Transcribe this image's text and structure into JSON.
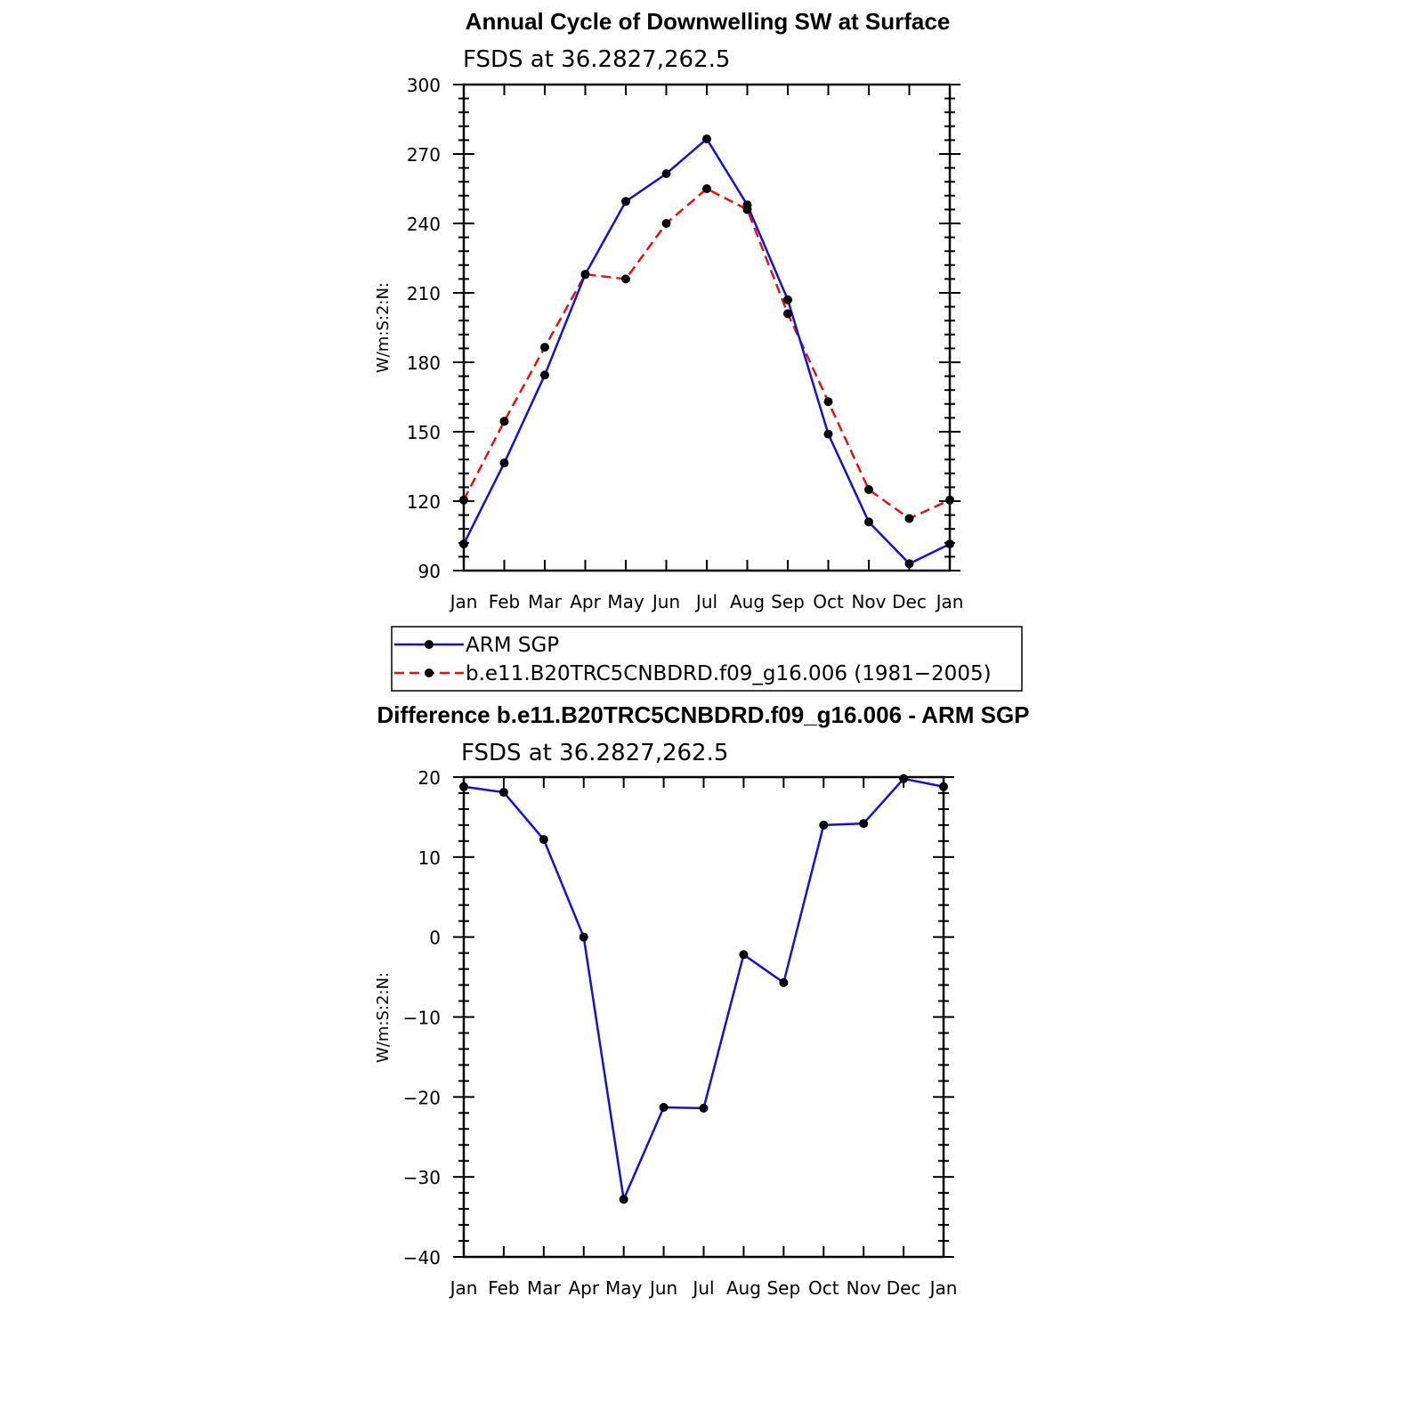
{
  "colors": {
    "obs": "#1010e0",
    "model": "#e81010",
    "diff": "#1010e0",
    "marker": "#000000"
  },
  "chart_data": [
    {
      "type": "line",
      "title": "Annual Cycle of Downwelling SW at Surface",
      "subtitle": "FSDS at 36.2827,262.5",
      "ylabel": "W/m:S:2:N:",
      "xlabel": "",
      "categories": [
        "Jan",
        "Feb",
        "Mar",
        "Apr",
        "May",
        "Jun",
        "Jul",
        "Aug",
        "Sep",
        "Oct",
        "Nov",
        "Dec",
        "Jan"
      ],
      "ylim": [
        90,
        300
      ],
      "yticks": [
        90,
        120,
        150,
        180,
        210,
        240,
        270,
        300
      ],
      "grid": false,
      "legend_position": "below",
      "series": [
        {
          "name": "ARM SGP",
          "style": "solid",
          "values": [
            101.5,
            136.5,
            174.5,
            218,
            249.5,
            261.5,
            276.5,
            248,
            207,
            149,
            111,
            93,
            101.5
          ]
        },
        {
          "name": "b.e11.B20TRC5CNBDRD.f09_g16.006 (1981−2005)",
          "style": "dashed",
          "values": [
            120.5,
            154.5,
            186.5,
            218,
            216,
            240,
            255,
            246,
            201,
            163,
            125,
            112.5,
            120.5
          ]
        }
      ]
    },
    {
      "type": "line",
      "title": "Difference b.e11.B20TRC5CNBDRD.f09_g16.006 - ARM SGP",
      "subtitle": "FSDS at 36.2827,262.5",
      "ylabel": "W/m:S:2:N:",
      "xlabel": "",
      "categories": [
        "Jan",
        "Feb",
        "Mar",
        "Apr",
        "May",
        "Jun",
        "Jul",
        "Aug",
        "Sep",
        "Oct",
        "Nov",
        "Dec",
        "Jan"
      ],
      "ylim": [
        -40,
        20
      ],
      "yticks": [
        -40,
        -30,
        -20,
        -10,
        0,
        10,
        20
      ],
      "ytick_labels": [
        "−40",
        "−30",
        "−20",
        "−10",
        "0",
        "10",
        "20"
      ],
      "grid": false,
      "series": [
        {
          "style": "solid",
          "values": [
            18.8,
            18.1,
            12.2,
            0,
            -32.8,
            -21.3,
            -21.4,
            -2.2,
            -5.7,
            14,
            14.2,
            19.8,
            18.8
          ]
        }
      ]
    }
  ]
}
